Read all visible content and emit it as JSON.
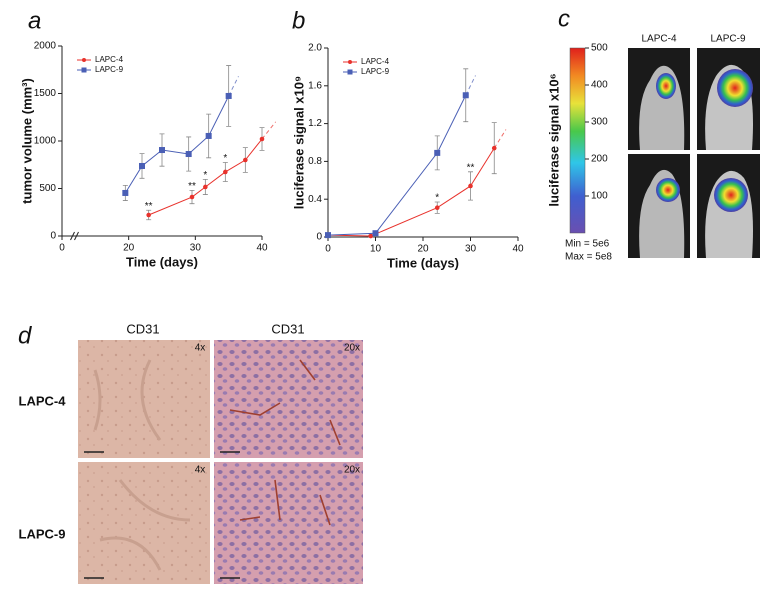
{
  "chart_data": [
    {
      "type": "line",
      "panel_label": "a",
      "x_label": "Time (days)",
      "y_label": "tumor volume (mm³)",
      "xlim": [
        0,
        40
      ],
      "xticks": [
        0,
        20,
        30,
        40
      ],
      "x_break": true,
      "ylim": [
        0,
        2000
      ],
      "yticks": [
        0,
        500,
        1000,
        1500,
        2000
      ],
      "series": [
        {
          "name": "LAPC-4",
          "color": "#e8322c",
          "marker": "circle",
          "x": [
            23,
            29.5,
            31.5,
            34.5,
            37.5,
            40
          ],
          "values": [
            221,
            410,
            516,
            674,
            800,
            1021
          ],
          "errors": [
            50,
            70,
            80,
            100,
            130,
            120
          ],
          "significance": [
            "**",
            "**",
            "*",
            "*",
            null,
            null
          ]
        },
        {
          "name": "LAPC-9",
          "color": "#4a5fb5",
          "marker": "square",
          "x": [
            19,
            22,
            25,
            29,
            32,
            35
          ],
          "values": [
            453,
            737,
            905,
            863,
            1053,
            1474
          ],
          "errors": [
            80,
            130,
            170,
            180,
            230,
            320
          ]
        }
      ]
    },
    {
      "type": "line",
      "panel_label": "b",
      "x_label": "Time (days)",
      "y_label": "luciferase signal x10⁹",
      "xlim": [
        0,
        40
      ],
      "xticks": [
        0,
        10,
        20,
        30,
        40
      ],
      "ylim": [
        0,
        2
      ],
      "yticks": [
        0,
        0.4,
        0.8,
        1.2,
        1.6,
        {
          "value": 2,
          "label": "2.0"
        }
      ],
      "series": [
        {
          "name": "LAPC-4",
          "color": "#e8322c",
          "marker": "circle",
          "x": [
            0,
            9,
            23,
            30,
            35
          ],
          "values": [
            0.02,
            0.01,
            0.31,
            0.54,
            0.94
          ],
          "errors": [
            0.01,
            0.01,
            0.06,
            0.15,
            0.27
          ],
          "significance": [
            null,
            null,
            "*",
            "**",
            null
          ]
        },
        {
          "name": "LAPC-9",
          "color": "#4a5fb5",
          "marker": "square",
          "x": [
            0,
            10,
            23,
            29
          ],
          "values": [
            0.02,
            0.04,
            0.89,
            1.5
          ],
          "errors": [
            0.01,
            0.01,
            0.18,
            0.28
          ]
        }
      ]
    }
  ],
  "panel_c": {
    "label": "c",
    "colorbar": {
      "title": "luciferase signal x10⁶",
      "lim": [
        0,
        500
      ],
      "ticks": [
        100,
        200,
        300,
        400,
        500
      ]
    },
    "columns": [
      "LAPC-4",
      "LAPC-9"
    ],
    "min_label": "Min = 5e6",
    "max_label": "Max = 5e8"
  },
  "panel_d": {
    "label": "d",
    "columns": [
      "CD31",
      "CD31"
    ],
    "magnifications": [
      "4x",
      "20x"
    ],
    "rows": [
      "LAPC-4",
      "LAPC-9"
    ]
  }
}
